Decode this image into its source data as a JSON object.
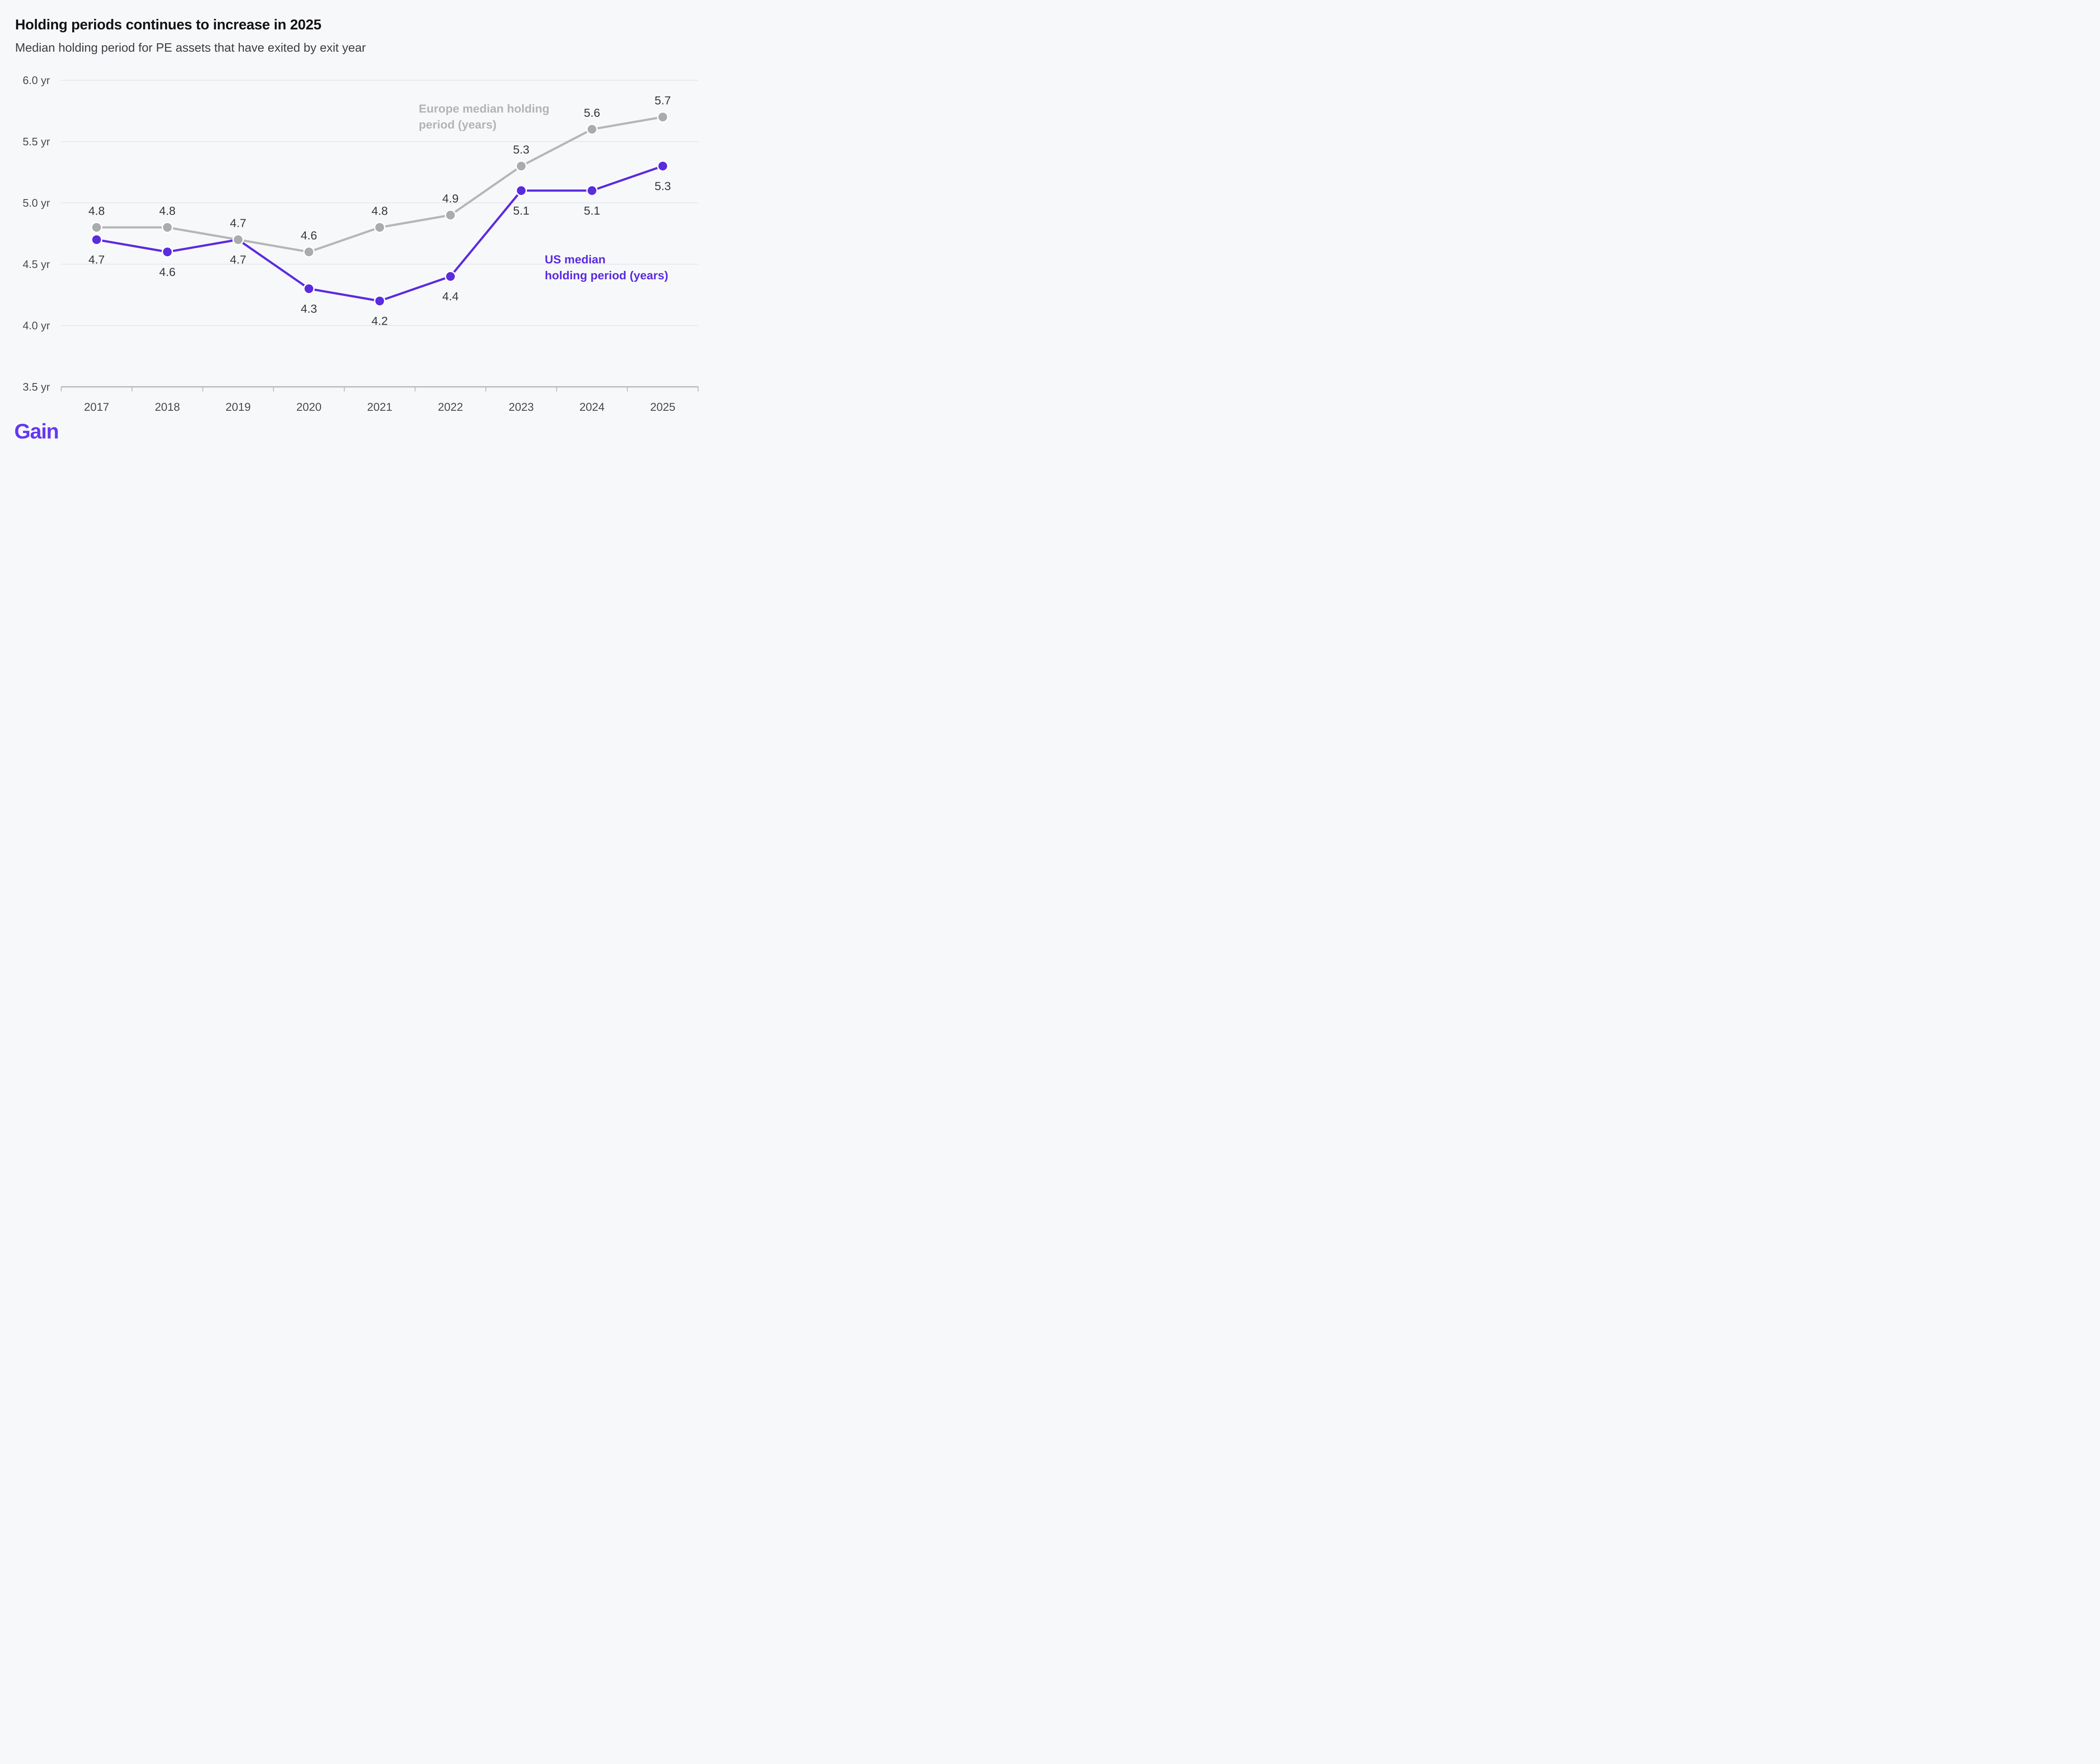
{
  "header": {
    "title": "Holding periods continues to increase in 2025",
    "subtitle": "Median holding period for PE assets that have exited by exit year"
  },
  "footer": {
    "logo_text": "Gain",
    "logo_color": "#6438f2"
  },
  "colors": {
    "background": "#f7f8fa",
    "gridline": "#e7e8ec",
    "axis_line": "#b6b7b9",
    "tick_label": "#47494d",
    "value_label": "#34373c",
    "europe_gray": "#b5b6b8",
    "us_purple": "#5b2be0"
  },
  "chart_data": {
    "type": "line",
    "title": "Holding periods continues to increase in 2025",
    "subtitle": "Median holding period for PE assets that have exited by exit year",
    "categories": [
      "2017",
      "2018",
      "2019",
      "2020",
      "2021",
      "2022",
      "2023",
      "2024",
      "2025"
    ],
    "series": [
      {
        "name": "Europe median holding period (years)",
        "legend_lines": [
          "Europe median holding",
          "period (years)"
        ],
        "line_color": "#b5b6b8",
        "marker_color": "#a9abad",
        "legend_color": "#b2b4b6",
        "values": [
          4.8,
          4.8,
          4.7,
          4.6,
          4.8,
          4.9,
          5.3,
          5.6,
          5.7
        ],
        "value_labels": [
          "4.8",
          "4.8",
          "4.7",
          "4.6",
          "4.8",
          "4.9",
          "5.3",
          "5.6",
          "5.7"
        ],
        "label_position": "above"
      },
      {
        "name": "US median holding period (years)",
        "legend_lines": [
          "US median",
          "holding period (years)"
        ],
        "line_color": "#5b2be0",
        "marker_color": "#5b2be0",
        "legend_color": "#5b2be0",
        "values": [
          4.7,
          4.6,
          4.7,
          4.3,
          4.2,
          4.4,
          5.1,
          5.1,
          5.3
        ],
        "value_labels": [
          "4.7",
          "4.6",
          "4.7",
          "4.3",
          "4.2",
          "4.4",
          "5.1",
          "5.1",
          "5.3"
        ],
        "label_position": "below"
      }
    ],
    "ylim": [
      3.5,
      6.0
    ],
    "yticks": [
      {
        "value": 6.0,
        "label": "6.0 yr"
      },
      {
        "value": 5.5,
        "label": "5.5 yr"
      },
      {
        "value": 5.0,
        "label": "5.0 yr"
      },
      {
        "value": 4.5,
        "label": "4.5 yr"
      },
      {
        "value": 4.0,
        "label": "4.0 yr"
      },
      {
        "value": 3.5,
        "label": "3.5 yr"
      }
    ],
    "xlabel": "",
    "ylabel": "",
    "grid": "horizontal",
    "legend_position": "inline annotations near lines"
  }
}
